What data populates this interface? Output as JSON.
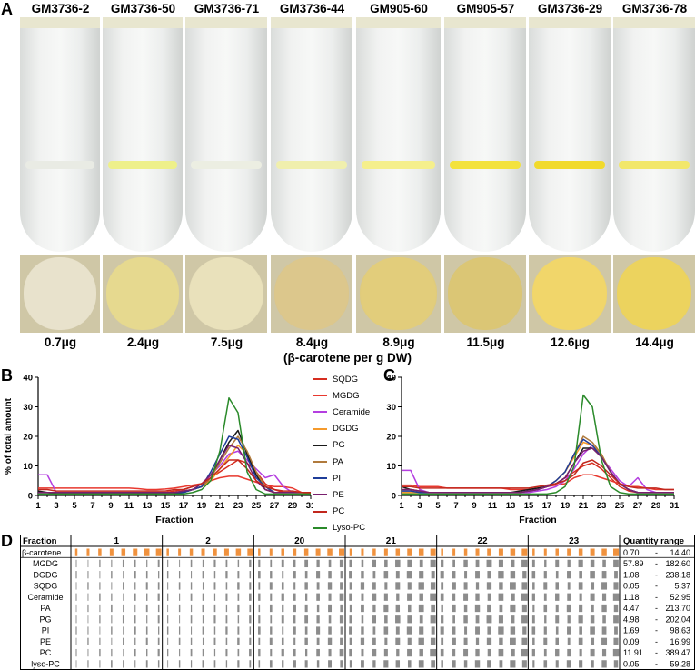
{
  "panel_a": {
    "letter": "A",
    "samples": [
      {
        "name": "GM3736-2",
        "amount": "0.7μg",
        "band_color": "#e9ebe4"
      },
      {
        "name": "GM3736-50",
        "amount": "2.4μg",
        "band_color": "#eef08a"
      },
      {
        "name": "GM3736-71",
        "amount": "7.5μg",
        "band_color": "#eceee2"
      },
      {
        "name": "GM3736-44",
        "amount": "8.4μg",
        "band_color": "#f0efad"
      },
      {
        "name": "GM905-60",
        "amount": "8.9μg",
        "band_color": "#f5ef8c"
      },
      {
        "name": "GM905-57",
        "amount": "11.5μg",
        "band_color": "#f3e23d"
      },
      {
        "name": "GM3736-29",
        "amount": "12.6μg",
        "band_color": "#f1da2c"
      },
      {
        "name": "GM3736-78",
        "amount": "14.4μg",
        "band_color": "#f2e76a"
      }
    ],
    "caption": "(β-carotene per g DW)"
  },
  "panel_b": {
    "letter": "B"
  },
  "panel_c": {
    "letter": "C"
  },
  "panel_d": {
    "letter": "D",
    "header_fraction": "Fraction",
    "header_quantity": "Quantity range",
    "fractions": [
      "1",
      "2",
      "20",
      "21",
      "22",
      "23"
    ],
    "rows": [
      {
        "name": "β-carotene",
        "min": "0.70",
        "max": "14.40"
      },
      {
        "name": "MGDG",
        "min": "57.89",
        "max": "182.60"
      },
      {
        "name": "DGDG",
        "min": "1.08",
        "max": "238.18"
      },
      {
        "name": "SQDG",
        "min": "0.05",
        "max": "5.37"
      },
      {
        "name": "Ceramide",
        "min": "1.18",
        "max": "52.95"
      },
      {
        "name": "PA",
        "min": "4.47",
        "max": "213.70"
      },
      {
        "name": "PG",
        "min": "4.98",
        "max": "202.04"
      },
      {
        "name": "PI",
        "min": "1.69",
        "max": "98.63"
      },
      {
        "name": "PE",
        "min": "0.09",
        "max": "16.99"
      },
      {
        "name": "PC",
        "min": "11.91",
        "max": "389.47"
      },
      {
        "name": "lyso-PC",
        "min": "0.05",
        "max": "59.28"
      }
    ],
    "dash": "-"
  },
  "legend": [
    {
      "name": "SQDG",
      "color": "#d62d20"
    },
    {
      "name": "MGDG",
      "color": "#e8392f"
    },
    {
      "name": "Ceramide",
      "color": "#b43fe0"
    },
    {
      "name": "DGDG",
      "color": "#f59a2c"
    },
    {
      "name": "PG",
      "color": "#1a1a1a"
    },
    {
      "name": "PA",
      "color": "#b07a3c"
    },
    {
      "name": "PI",
      "color": "#1f3d99"
    },
    {
      "name": "PE",
      "color": "#7a1f6e"
    },
    {
      "name": "PC",
      "color": "#c2271d"
    },
    {
      "name": "Lyso-PC",
      "color": "#2a8a2a"
    }
  ],
  "chart_data": [
    {
      "panel": "B",
      "type": "line",
      "xlabel": "Fraction",
      "ylabel": "% of total amount",
      "xlim": [
        1,
        31
      ],
      "ylim": [
        0,
        40
      ],
      "xticks": [
        1,
        3,
        5,
        7,
        9,
        11,
        13,
        15,
        17,
        19,
        21,
        23,
        25,
        27,
        29,
        31
      ],
      "yticks": [
        0,
        10,
        20,
        30,
        40
      ],
      "x": [
        1,
        2,
        3,
        4,
        5,
        6,
        7,
        8,
        9,
        10,
        11,
        12,
        13,
        14,
        15,
        16,
        17,
        18,
        19,
        20,
        21,
        22,
        23,
        24,
        25,
        26,
        27,
        28,
        29,
        30,
        31
      ],
      "series": [
        {
          "name": "SQDG",
          "values": [
            1,
            1,
            1,
            1,
            1,
            1,
            1,
            1,
            1,
            1,
            1,
            1,
            1,
            1,
            1,
            1.5,
            2,
            3,
            4,
            6,
            8,
            10,
            12,
            11,
            8,
            4,
            2,
            1,
            1,
            1,
            1
          ]
        },
        {
          "name": "MGDG",
          "values": [
            2.5,
            2.5,
            2.5,
            2.5,
            2.5,
            2.5,
            2.5,
            2.5,
            2.5,
            2.5,
            2.5,
            2.3,
            2,
            2,
            2.2,
            2.5,
            3,
            3.5,
            4,
            5,
            6,
            6.5,
            6.5,
            5.5,
            4.5,
            3.5,
            3,
            3,
            2.5,
            1,
            0.5
          ]
        },
        {
          "name": "Ceramide",
          "values": [
            7,
            7,
            1,
            1,
            1,
            1,
            1,
            1,
            1,
            1,
            1,
            1,
            1,
            1,
            1,
            1,
            1.5,
            2,
            3,
            7,
            10,
            14,
            15,
            12,
            9,
            6,
            7,
            3,
            1,
            1,
            1
          ]
        },
        {
          "name": "DGDG",
          "values": [
            1,
            1,
            1,
            1,
            1,
            1,
            1,
            1,
            1,
            1,
            1,
            1,
            1,
            1,
            1,
            1,
            1.5,
            2,
            3,
            5,
            9,
            13,
            17,
            14,
            7,
            3,
            1,
            1,
            1,
            1,
            1
          ]
        },
        {
          "name": "PG",
          "values": [
            1.5,
            1,
            0.5,
            0.5,
            0.5,
            0.5,
            0.5,
            0.5,
            0.5,
            0.5,
            0.5,
            0.5,
            0.5,
            0.5,
            0.5,
            0.5,
            1,
            2,
            3,
            6,
            12,
            18,
            22,
            14,
            7,
            2,
            1,
            1,
            1,
            1,
            1
          ]
        },
        {
          "name": "PA",
          "values": [
            1,
            1,
            1,
            1,
            1,
            1,
            1,
            1,
            1,
            1,
            1,
            1,
            1,
            1,
            1,
            1,
            1.5,
            2,
            3,
            6,
            11,
            16,
            20,
            15,
            8,
            3,
            1,
            1,
            1,
            1,
            1
          ]
        },
        {
          "name": "PI",
          "values": [
            1,
            1,
            1,
            1,
            1,
            1,
            1,
            1,
            1,
            1,
            1,
            1,
            1,
            1,
            1,
            1,
            1,
            2,
            3,
            8,
            14,
            20,
            19,
            13,
            6,
            3,
            1,
            1,
            1,
            1,
            1
          ]
        },
        {
          "name": "PE",
          "values": [
            1,
            1,
            1,
            1,
            1,
            1,
            1,
            1,
            1,
            1,
            1,
            1,
            1,
            1,
            1,
            1,
            1.5,
            2,
            4,
            7,
            12,
            17,
            16,
            11,
            5,
            2,
            1,
            1,
            1,
            1,
            1
          ]
        },
        {
          "name": "PC",
          "values": [
            2,
            2,
            1.5,
            1.5,
            1.5,
            1.5,
            1.5,
            1.5,
            1.5,
            1.5,
            1.5,
            1.5,
            1.5,
            1.5,
            1.5,
            2,
            2,
            3,
            4,
            6,
            9,
            12,
            12,
            9,
            5,
            3,
            2,
            1.5,
            1.5,
            1,
            1
          ]
        },
        {
          "name": "Lyso-PC",
          "values": [
            0.5,
            0.5,
            0.5,
            0.5,
            0.5,
            0.5,
            0.5,
            0.5,
            0.5,
            0.5,
            0.5,
            0.5,
            0.5,
            0.5,
            0.5,
            0.5,
            0.5,
            1,
            2,
            5,
            15,
            33,
            28,
            8,
            2,
            0.5,
            0.5,
            0.5,
            0.5,
            0.5,
            0.5
          ]
        }
      ]
    },
    {
      "panel": "C",
      "type": "line",
      "xlabel": "Fraction",
      "ylabel": "",
      "xlim": [
        1,
        31
      ],
      "ylim": [
        0,
        40
      ],
      "xticks": [
        1,
        3,
        5,
        7,
        9,
        11,
        13,
        15,
        17,
        19,
        21,
        23,
        25,
        27,
        29,
        31
      ],
      "yticks": [
        0,
        10,
        20,
        30,
        40
      ],
      "x": [
        1,
        2,
        3,
        4,
        5,
        6,
        7,
        8,
        9,
        10,
        11,
        12,
        13,
        14,
        15,
        16,
        17,
        18,
        19,
        20,
        21,
        22,
        23,
        24,
        25,
        26,
        27,
        28,
        29,
        30,
        31
      ],
      "series": [
        {
          "name": "SQDG",
          "values": [
            1,
            1,
            1,
            1,
            1,
            1,
            1,
            1,
            1,
            1,
            1,
            1,
            1,
            1,
            1.5,
            2,
            3,
            4,
            6,
            8,
            10,
            11,
            9,
            6,
            3,
            1.5,
            1,
            1,
            1,
            1,
            1
          ]
        },
        {
          "name": "MGDG",
          "values": [
            3.5,
            3.5,
            3,
            3,
            3,
            2.5,
            2.5,
            2.5,
            2.5,
            2.5,
            2.5,
            2.5,
            2,
            2,
            2,
            2.5,
            3,
            3.5,
            4,
            6,
            7,
            7,
            6,
            5,
            4,
            3,
            3,
            2.5,
            2,
            2,
            2
          ]
        },
        {
          "name": "Ceramide",
          "values": [
            8.5,
            8.5,
            2,
            1,
            1,
            1,
            1,
            1,
            1,
            1,
            1,
            1,
            1,
            1,
            1,
            1.5,
            2,
            3,
            5,
            9,
            14,
            17,
            13,
            9,
            5,
            3,
            6,
            2,
            1,
            1,
            1
          ]
        },
        {
          "name": "DGDG",
          "values": [
            1,
            1,
            1,
            1,
            1,
            1,
            1,
            1,
            1,
            1,
            1,
            1,
            1,
            1,
            1.5,
            2,
            3,
            5,
            8,
            13,
            18,
            17,
            14,
            8,
            4,
            2,
            1,
            1,
            1,
            1,
            1
          ]
        },
        {
          "name": "PG",
          "values": [
            3,
            2,
            1.5,
            1,
            1,
            1,
            1,
            1,
            1,
            1,
            1,
            1,
            1,
            1.5,
            2,
            2.5,
            3,
            4,
            6,
            11,
            16,
            16,
            13,
            8,
            4,
            2,
            1,
            1,
            1,
            1,
            1
          ]
        },
        {
          "name": "PA",
          "values": [
            2,
            2,
            1.5,
            1,
            1,
            1,
            1,
            1,
            1,
            1,
            1,
            1,
            1,
            1,
            1.5,
            2,
            3,
            5,
            8,
            14,
            20,
            18,
            14,
            8,
            4,
            2,
            1,
            1,
            1,
            1,
            1
          ]
        },
        {
          "name": "PI",
          "values": [
            1.5,
            1.5,
            1,
            1,
            1,
            1,
            1,
            1,
            1,
            1,
            1,
            1,
            1,
            1,
            1.5,
            2,
            3,
            5,
            8,
            14,
            19,
            17,
            13,
            8,
            4,
            2,
            1,
            1,
            1,
            1,
            1
          ]
        },
        {
          "name": "PE",
          "values": [
            2,
            2,
            1.5,
            1,
            1,
            1,
            1,
            1,
            1,
            1,
            1,
            1,
            1,
            1,
            1.5,
            2,
            3,
            4,
            6,
            11,
            15,
            16,
            13,
            8,
            4,
            2,
            1,
            1,
            1,
            1,
            1
          ]
        },
        {
          "name": "PC",
          "values": [
            3,
            3,
            2.5,
            2.5,
            2.5,
            2.5,
            2.5,
            2.5,
            2.5,
            2.5,
            2.5,
            2.5,
            2.5,
            2.5,
            2.5,
            3,
            3.5,
            4,
            5,
            7,
            11,
            12,
            10,
            7,
            4,
            3,
            2.5,
            2.5,
            2.5,
            2,
            2
          ]
        },
        {
          "name": "Lyso-PC",
          "values": [
            0.5,
            0.5,
            0.5,
            0.5,
            0.5,
            0.5,
            0.5,
            0.5,
            0.5,
            0.5,
            0.5,
            0.5,
            0.5,
            0.5,
            0.5,
            0.5,
            0.5,
            1,
            3,
            10,
            34,
            30,
            12,
            3,
            1,
            0.5,
            0.5,
            0.5,
            0.5,
            0.5,
            0.5
          ]
        }
      ]
    }
  ]
}
